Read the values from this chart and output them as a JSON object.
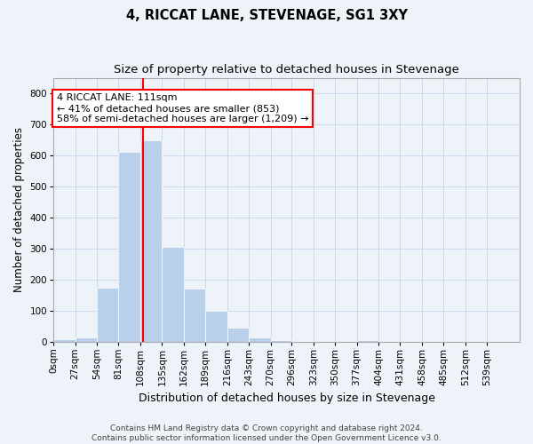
{
  "title": "4, RICCAT LANE, STEVENAGE, SG1 3XY",
  "subtitle": "Size of property relative to detached houses in Stevenage",
  "xlabel": "Distribution of detached houses by size in Stevenage",
  "ylabel": "Number of detached properties",
  "bar_color": "#b8d0ea",
  "bar_edgecolor": "#b8d0ea",
  "grid_color": "#c8d8ec",
  "bg_color": "#eef2f9",
  "property_line_x": 111,
  "annotation_text": "4 RICCAT LANE: 111sqm\n← 41% of detached houses are smaller (853)\n58% of semi-detached houses are larger (1,209) →",
  "annotation_box_color": "white",
  "annotation_box_edgecolor": "red",
  "vline_color": "red",
  "bin_width": 27,
  "bin_starts": [
    0,
    27,
    54,
    81,
    108,
    135,
    162,
    189,
    216,
    243,
    270,
    296,
    323,
    350,
    377,
    404,
    431,
    458,
    485,
    512
  ],
  "bar_heights": [
    8,
    12,
    175,
    612,
    650,
    305,
    170,
    100,
    45,
    13,
    6,
    2,
    0,
    0,
    5,
    0,
    0,
    0,
    0,
    0
  ],
  "tick_labels": [
    "0sqm",
    "27sqm",
    "54sqm",
    "81sqm",
    "108sqm",
    "135sqm",
    "162sqm",
    "189sqm",
    "216sqm",
    "243sqm",
    "270sqm",
    "296sqm",
    "323sqm",
    "350sqm",
    "377sqm",
    "404sqm",
    "431sqm",
    "458sqm",
    "485sqm",
    "512sqm",
    "539sqm"
  ],
  "ylim": [
    0,
    850
  ],
  "yticks": [
    0,
    100,
    200,
    300,
    400,
    500,
    600,
    700,
    800
  ],
  "footer_text": "Contains HM Land Registry data © Crown copyright and database right 2024.\nContains public sector information licensed under the Open Government Licence v3.0.",
  "title_fontsize": 10.5,
  "subtitle_fontsize": 9.5,
  "xlabel_fontsize": 9,
  "ylabel_fontsize": 8.5,
  "tick_fontsize": 7.5,
  "annotation_fontsize": 8,
  "footer_fontsize": 6.5
}
